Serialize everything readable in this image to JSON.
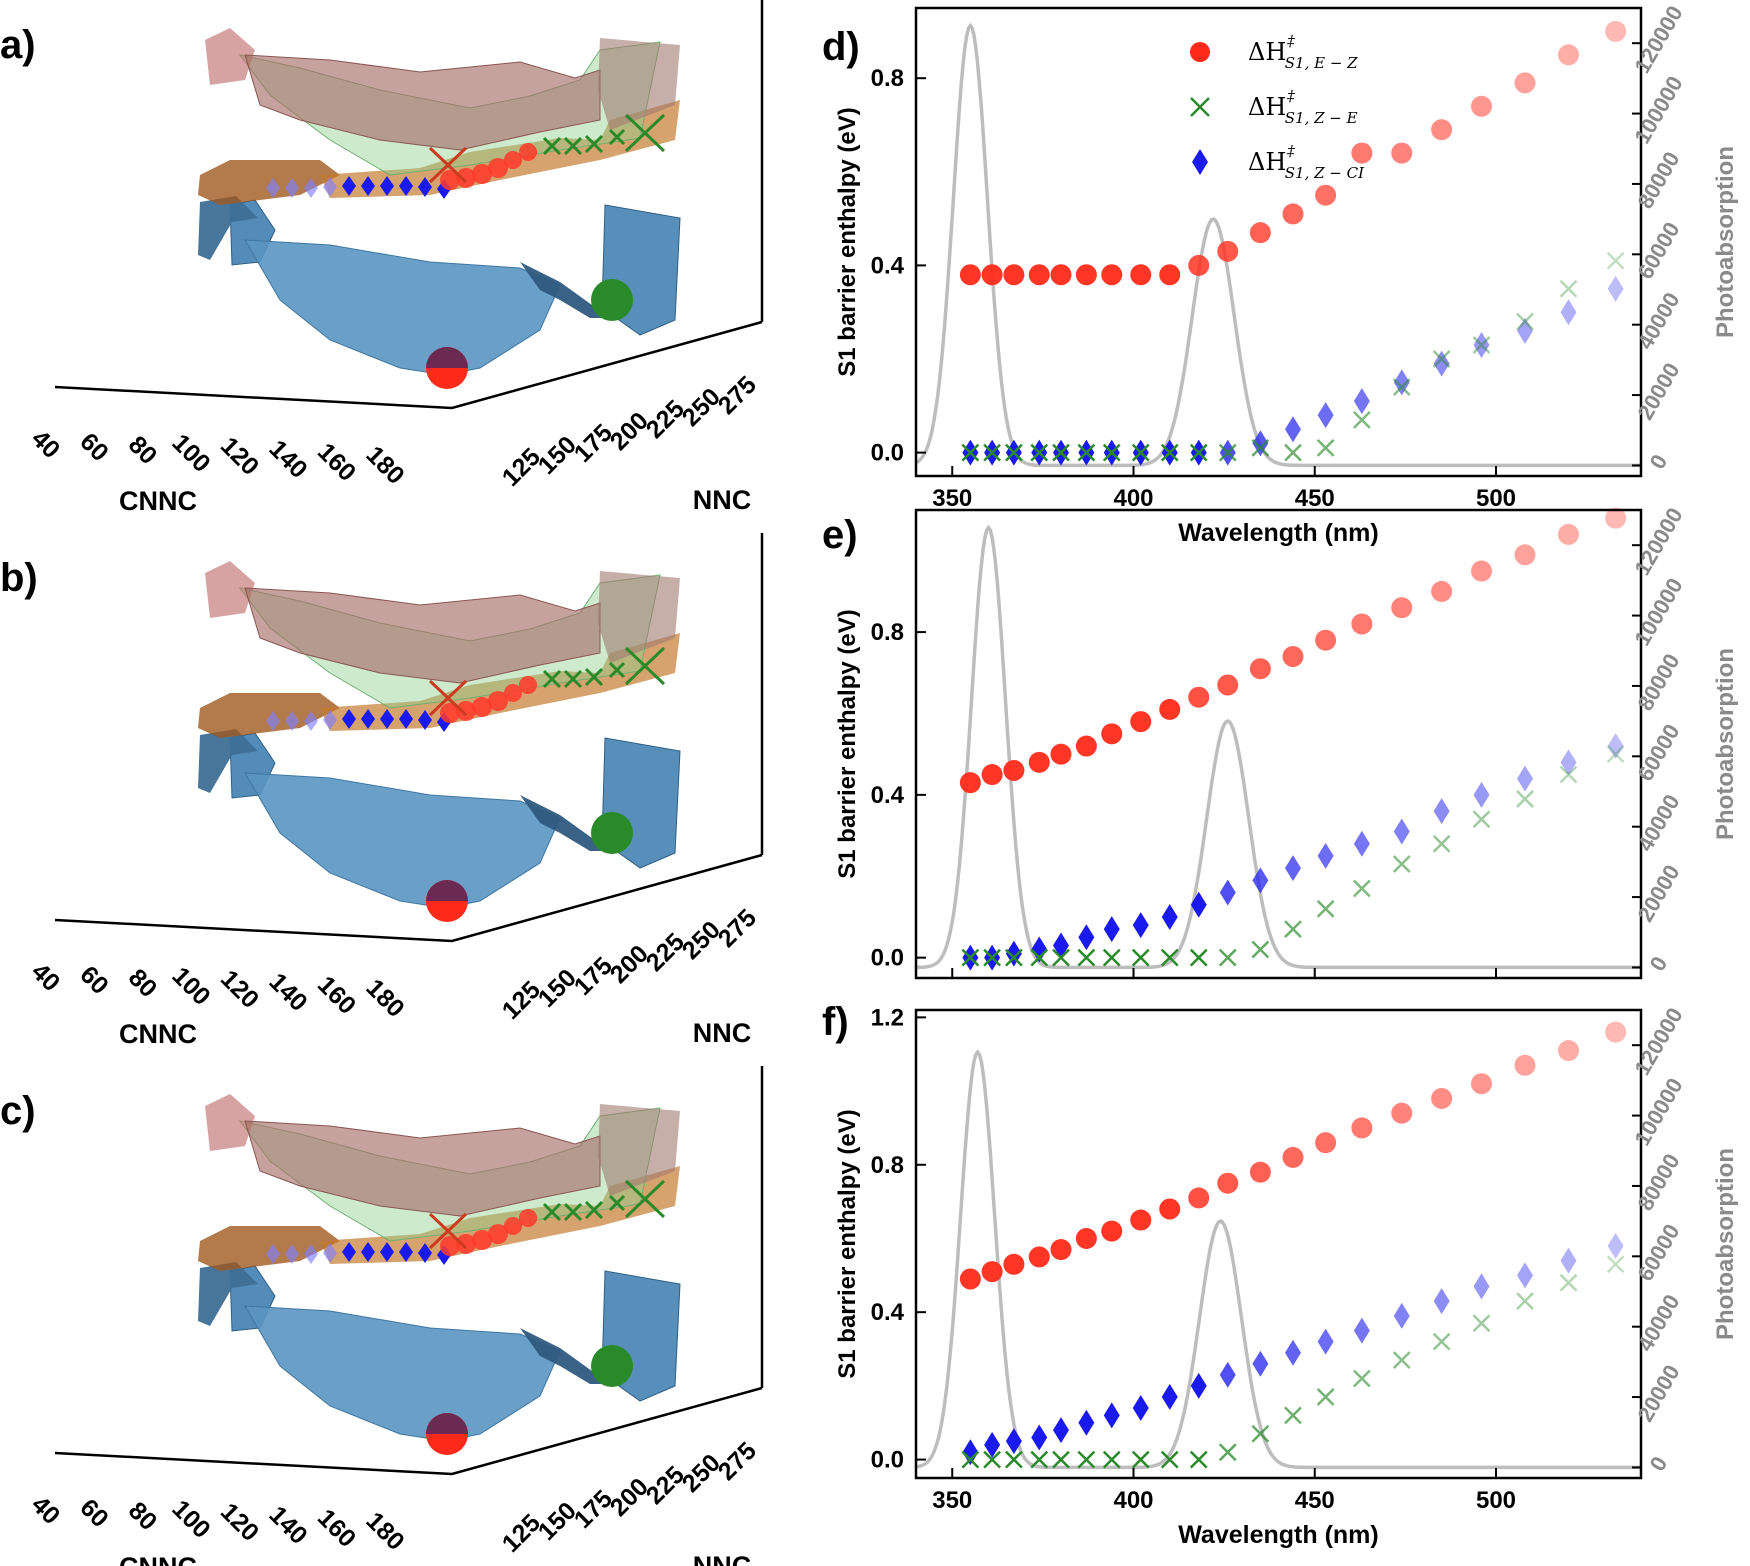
{
  "panels_3d": [
    {
      "label": "a)",
      "x_axis_label": "CNNC",
      "y_axis_label": "NNC",
      "cnnc_ticks": [
        "40",
        "60",
        "80",
        "100",
        "120",
        "140",
        "160",
        "180"
      ],
      "nnc_ticks": [
        "125",
        "150",
        "175",
        "200",
        "225",
        "250",
        "275"
      ]
    },
    {
      "label": "b)",
      "x_axis_label": "CNNC",
      "y_axis_label": "NNC",
      "cnnc_ticks": [
        "40",
        "60",
        "80",
        "100",
        "120",
        "140",
        "160",
        "180"
      ],
      "nnc_ticks": [
        "125",
        "150",
        "175",
        "200",
        "225",
        "250",
        "275"
      ]
    },
    {
      "label": "c)",
      "x_axis_label": "CNNC",
      "y_axis_label": "NNC",
      "cnnc_ticks": [
        "40",
        "60",
        "80",
        "100",
        "120",
        "140",
        "160",
        "180"
      ],
      "nnc_ticks": [
        "125",
        "150",
        "175",
        "200",
        "225",
        "250",
        "275"
      ]
    }
  ],
  "colors": {
    "ez": "#ff2a1a",
    "ze": "#2a8a2a",
    "zci": "#1a1aee",
    "absorption": "#bdbdbd",
    "surface_s1": "#a05a1e",
    "surface_s0": "#4a86b4",
    "surface_red": "#c07070",
    "surface_green": "#90d090"
  },
  "legend": [
    {
      "key": "ez",
      "main": "ΔH",
      "sup": "‡",
      "sub": "S1, E − Z"
    },
    {
      "key": "ze",
      "main": "ΔH",
      "sup": "‡",
      "sub": "S1, Z − E"
    },
    {
      "key": "zci",
      "main": "ΔH",
      "sup": "‡",
      "sub": "S1, Z − CI"
    }
  ],
  "chart_data": [
    {
      "type": "scatter",
      "panel_label": "d)",
      "xlabel": "Wavelength (nm)",
      "ylabel": "S1 barrier enthalpy (eV)",
      "y2label": "Photoabsorption",
      "xlim": [
        340,
        540
      ],
      "ylim": [
        -0.05,
        0.95
      ],
      "y2lim": [
        -3000,
        130000
      ],
      "xticks": [
        "350",
        "400",
        "450",
        "500"
      ],
      "yticks": [
        "0.0",
        "0.4",
        "0.8"
      ],
      "y2ticks": [
        "0",
        "20000",
        "40000",
        "60000",
        "80000",
        "100000",
        "120000"
      ],
      "x": [
        355,
        361,
        367,
        374,
        380,
        387,
        394,
        402,
        410,
        418,
        426,
        435,
        444,
        453,
        463,
        474,
        485,
        496,
        508,
        520,
        533
      ],
      "series": [
        {
          "name": "ΔH‡ S1,E−Z",
          "key": "ez",
          "values": [
            0.38,
            0.38,
            0.38,
            0.38,
            0.38,
            0.38,
            0.38,
            0.38,
            0.38,
            0.4,
            0.43,
            0.47,
            0.51,
            0.55,
            0.64,
            0.64,
            0.69,
            0.74,
            0.79,
            0.85,
            0.9
          ]
        },
        {
          "name": "ΔH‡ S1,Z−E",
          "key": "ze",
          "values": [
            0.0,
            0.0,
            0.0,
            0.0,
            0.0,
            0.0,
            0.0,
            0.0,
            0.0,
            0.0,
            0.0,
            0.01,
            0.0,
            0.01,
            0.07,
            0.14,
            0.2,
            0.23,
            0.28,
            0.35,
            0.41
          ]
        },
        {
          "name": "ΔH‡ S1,Z−CI",
          "key": "zci",
          "values": [
            0.0,
            0.0,
            0.0,
            0.0,
            0.0,
            0.0,
            0.0,
            0.0,
            0.0,
            0.0,
            0.0,
            0.02,
            0.05,
            0.08,
            0.11,
            0.15,
            0.19,
            0.23,
            0.26,
            0.3,
            0.35
          ]
        }
      ],
      "absorption_peaks": [
        {
          "center_nm": 355,
          "height": 125000,
          "sigma_nm": 4.7
        },
        {
          "center_nm": 422,
          "height": 70000,
          "sigma_nm": 5.8
        }
      ]
    },
    {
      "type": "scatter",
      "panel_label": "e)",
      "xlabel": "",
      "ylabel": "S1 barrier enthalpy (eV)",
      "y2label": "Photoabsorption",
      "xlim": [
        340,
        540
      ],
      "ylim": [
        -0.05,
        1.1
      ],
      "y2lim": [
        -3000,
        130000
      ],
      "xticks": [],
      "yticks": [
        "0.0",
        "0.4",
        "0.8"
      ],
      "y2ticks": [
        "0",
        "20000",
        "40000",
        "60000",
        "80000",
        "100000",
        "120000"
      ],
      "x": [
        355,
        361,
        367,
        374,
        380,
        387,
        394,
        402,
        410,
        418,
        426,
        435,
        444,
        453,
        463,
        474,
        485,
        496,
        508,
        520,
        533
      ],
      "series": [
        {
          "name": "ΔH‡ S1,E−Z",
          "key": "ez",
          "values": [
            0.43,
            0.45,
            0.46,
            0.48,
            0.5,
            0.52,
            0.55,
            0.58,
            0.61,
            0.64,
            0.67,
            0.71,
            0.74,
            0.78,
            0.82,
            0.86,
            0.9,
            0.95,
            0.99,
            1.04,
            1.08
          ]
        },
        {
          "name": "ΔH‡ S1,Z−E",
          "key": "ze",
          "values": [
            0.0,
            0.0,
            0.0,
            0.0,
            0.0,
            0.0,
            0.0,
            0.0,
            0.0,
            0.0,
            0.0,
            0.02,
            0.07,
            0.12,
            0.17,
            0.23,
            0.28,
            0.34,
            0.39,
            0.45,
            0.5
          ]
        },
        {
          "name": "ΔH‡ S1,Z−CI",
          "key": "zci",
          "values": [
            0.0,
            0.0,
            0.01,
            0.02,
            0.03,
            0.05,
            0.07,
            0.08,
            0.1,
            0.13,
            0.16,
            0.19,
            0.22,
            0.25,
            0.28,
            0.31,
            0.36,
            0.4,
            0.44,
            0.48,
            0.52
          ]
        }
      ],
      "absorption_peaks": [
        {
          "center_nm": 360,
          "height": 125000,
          "sigma_nm": 4.7
        },
        {
          "center_nm": 426,
          "height": 70000,
          "sigma_nm": 5.8
        }
      ]
    },
    {
      "type": "scatter",
      "panel_label": "f)",
      "xlabel": "Wavelength (nm)",
      "ylabel": "S1 barrier enthalpy (eV)",
      "y2label": "Photoabsorption",
      "xlim": [
        340,
        540
      ],
      "ylim": [
        -0.05,
        1.22
      ],
      "y2lim": [
        -3000,
        130000
      ],
      "xticks": [
        "350",
        "400",
        "450",
        "500"
      ],
      "yticks": [
        "0.0",
        "0.4",
        "0.8",
        "1.2"
      ],
      "y2ticks": [
        "0",
        "20000",
        "40000",
        "60000",
        "80000",
        "100000",
        "120000"
      ],
      "x": [
        355,
        361,
        367,
        374,
        380,
        387,
        394,
        402,
        410,
        418,
        426,
        435,
        444,
        453,
        463,
        474,
        485,
        496,
        508,
        520,
        533
      ],
      "series": [
        {
          "name": "ΔH‡ S1,E−Z",
          "key": "ez",
          "values": [
            0.49,
            0.51,
            0.53,
            0.55,
            0.57,
            0.6,
            0.62,
            0.65,
            0.68,
            0.71,
            0.75,
            0.78,
            0.82,
            0.86,
            0.9,
            0.94,
            0.98,
            1.02,
            1.07,
            1.11,
            1.16
          ]
        },
        {
          "name": "ΔH‡ S1,Z−E",
          "key": "ze",
          "values": [
            0.0,
            0.0,
            0.0,
            0.0,
            0.0,
            0.0,
            0.0,
            0.0,
            0.0,
            0.0,
            0.02,
            0.07,
            0.12,
            0.17,
            0.22,
            0.27,
            0.32,
            0.37,
            0.43,
            0.48,
            0.53
          ]
        },
        {
          "name": "ΔH‡ S1,Z−CI",
          "key": "zci",
          "values": [
            0.02,
            0.04,
            0.05,
            0.06,
            0.08,
            0.1,
            0.12,
            0.14,
            0.17,
            0.2,
            0.23,
            0.26,
            0.29,
            0.32,
            0.35,
            0.39,
            0.43,
            0.47,
            0.5,
            0.54,
            0.58
          ]
        }
      ],
      "absorption_peaks": [
        {
          "center_nm": 357,
          "height": 118000,
          "sigma_nm": 4.7
        },
        {
          "center_nm": 424,
          "height": 70000,
          "sigma_nm": 5.8
        }
      ]
    }
  ]
}
